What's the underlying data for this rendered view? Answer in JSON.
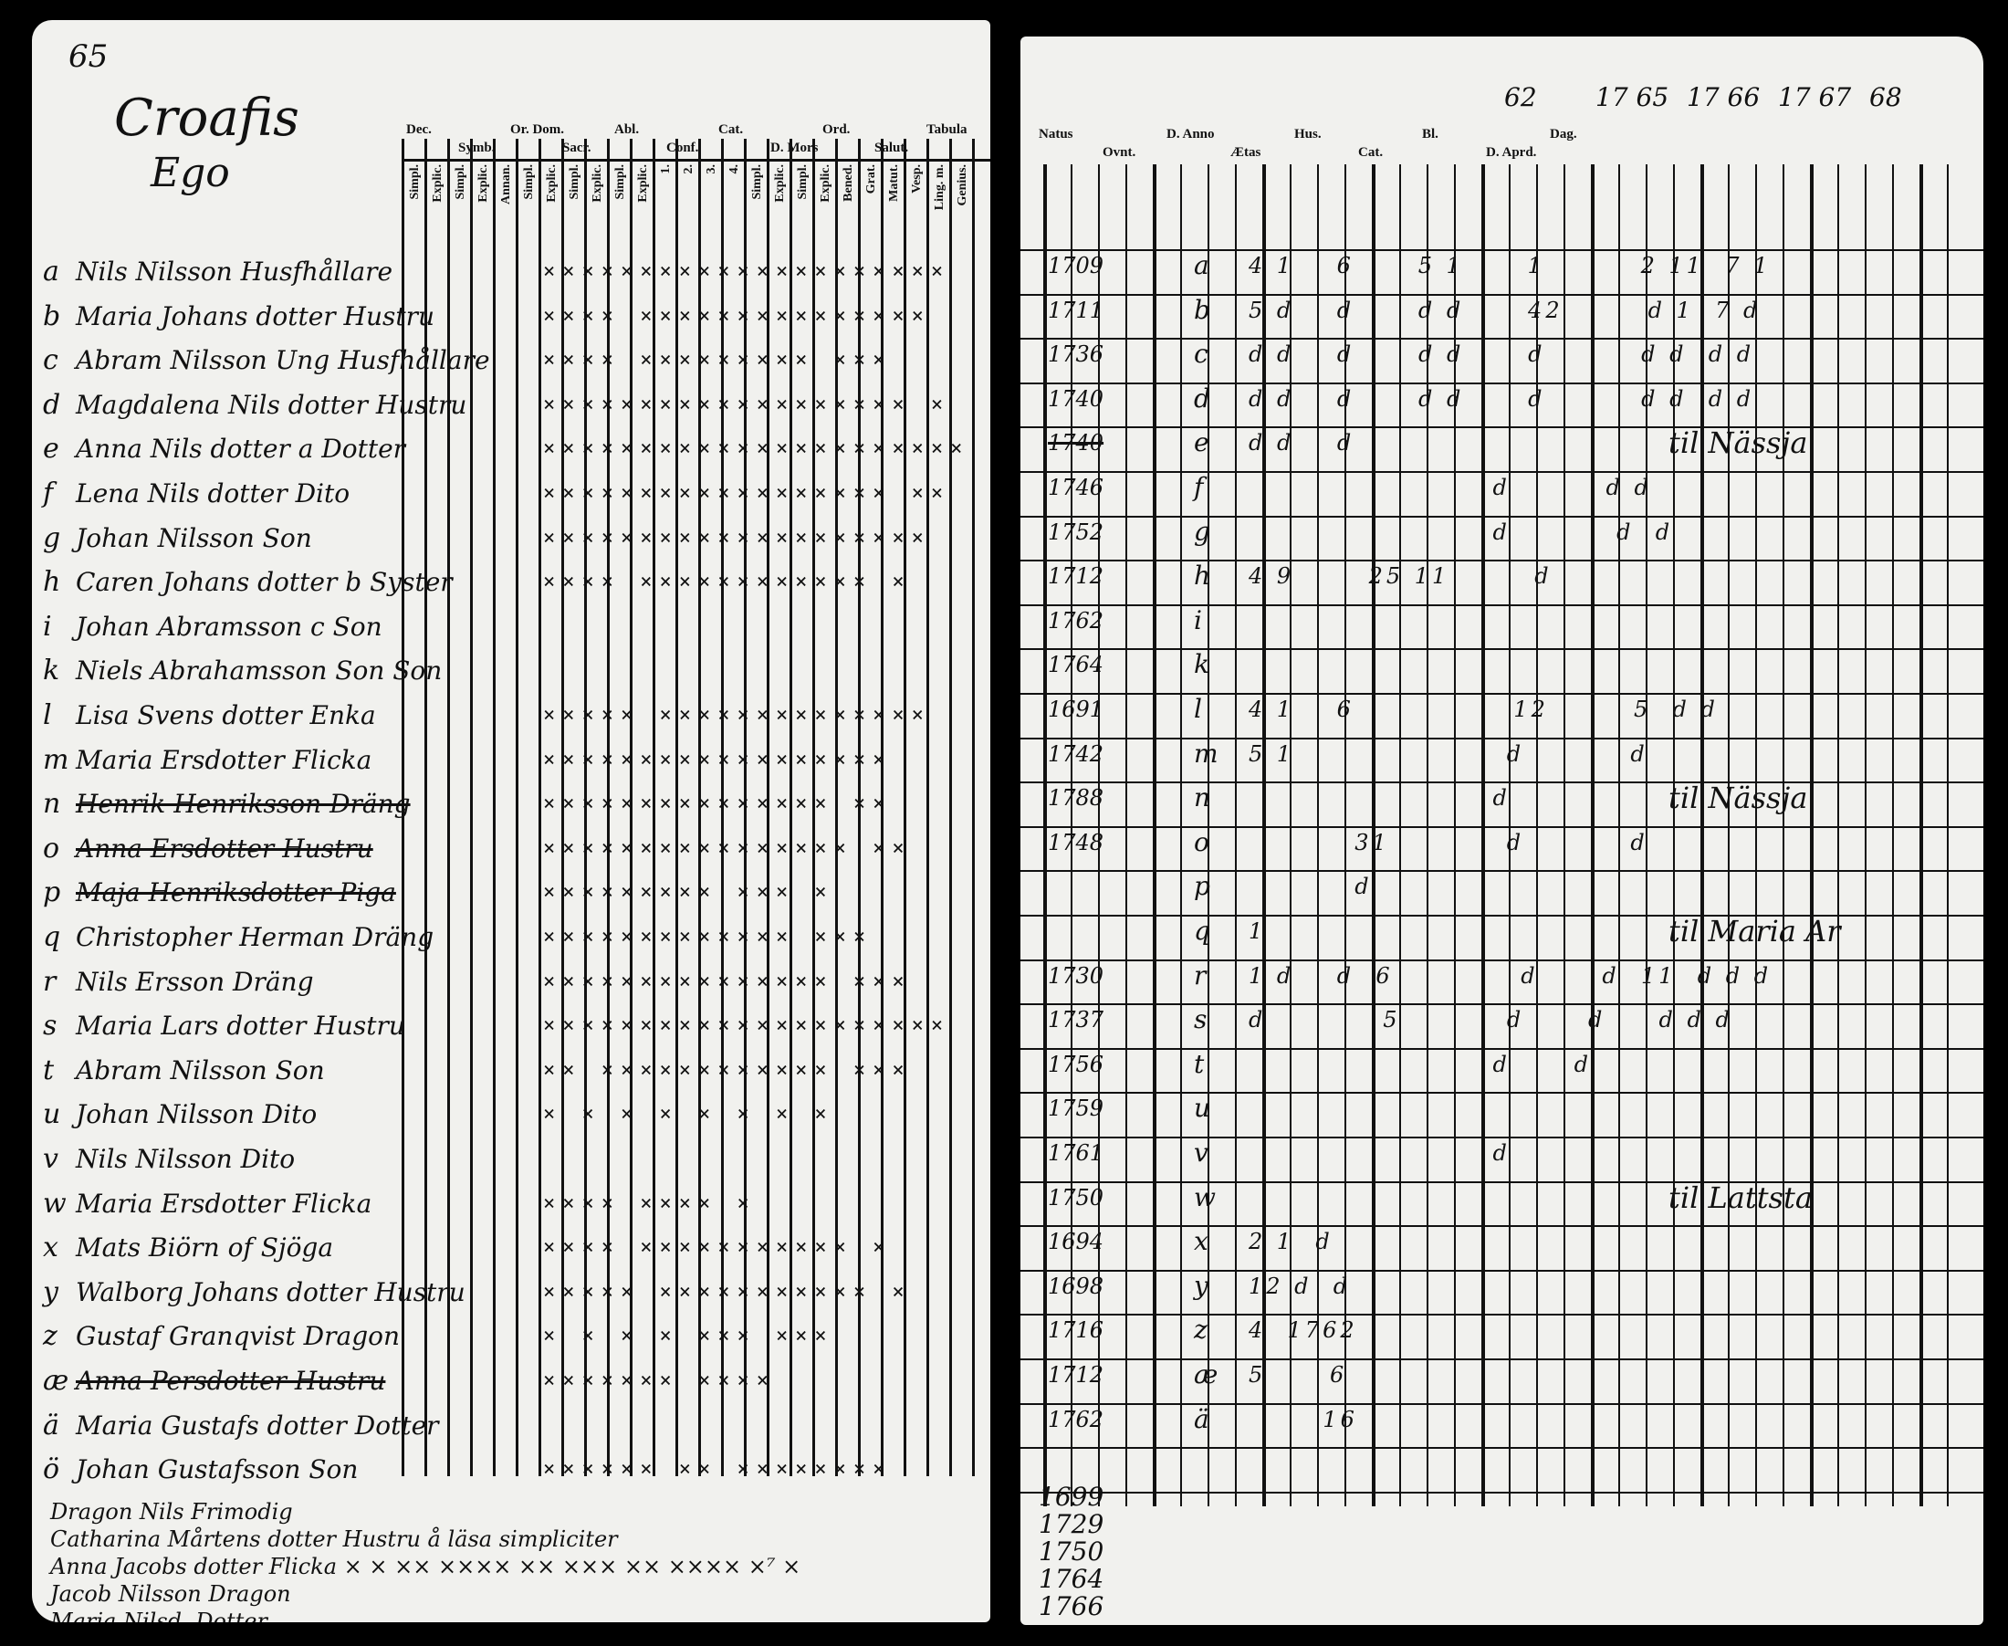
{
  "left_page": {
    "page_number": "65",
    "title": "Croafis",
    "subtitle": "Ego",
    "column_groups": [
      "Dec.",
      "Symb.",
      "Or. Dom.",
      "Sacr.",
      "Abl.",
      "Conf.",
      "Cat.",
      "D. Mors",
      "Ord.",
      "Salut.",
      "Tabula"
    ],
    "sub_columns": [
      "Simpl.",
      "Explic.",
      "Simpl.",
      "Explic.",
      "Annan.",
      "Simpl.",
      "Explic.",
      "Simpl.",
      "Explic.",
      "Simpl.",
      "Explic.",
      "1.",
      "2.",
      "3.",
      "4.",
      "Simpl.",
      "Explic.",
      "Simpl.",
      "Explic.",
      "Bened.",
      "Grat.",
      "Matut.",
      "Vesp.",
      "Ling. m.",
      "Genius."
    ],
    "rows": [
      {
        "letter": "a",
        "name": "Nils Nilsson Husfhållare",
        "marks": "×××××××××××××××××××××",
        "struck": false
      },
      {
        "letter": "b",
        "name": "Maria Johans dotter Hustru",
        "marks": "××××  ×××××××××××××××",
        "struck": false
      },
      {
        "letter": "c",
        "name": "Abram Nilsson Ung Husfhållare",
        "marks": "××××  ××××××××× ×××",
        "struck": false
      },
      {
        "letter": "d",
        "name": "Magdalena Nils dotter Hustru",
        "marks": "××××××××××××××××××× ×",
        "struck": false
      },
      {
        "letter": "e",
        "name": "Anna Nils dotter a Dotter",
        "marks": "××××××××××××××××××××××",
        "struck": false
      },
      {
        "letter": "f",
        "name": "Lena Nils dotter Dito",
        "marks": "×××××××××××××××××× ××",
        "struck": false
      },
      {
        "letter": "g",
        "name": "Johan Nilsson Son",
        "marks": "××××××××××××××××××××",
        "struck": false
      },
      {
        "letter": "h",
        "name": "Caren Johans dotter b Syster",
        "marks": "××××  ××××××××××××    ×",
        "struck": false
      },
      {
        "letter": "i",
        "name": "Johan Abramsson c Son",
        "marks": "",
        "struck": false
      },
      {
        "letter": "k",
        "name": "Niels Abrahamsson Son Son",
        "marks": "",
        "struck": false
      },
      {
        "letter": "l",
        "name": "Lisa Svens dotter Enka",
        "marks": "×××××  ××××××××××××××",
        "struck": false
      },
      {
        "letter": "m",
        "name": "Maria Ersdotter Flicka",
        "marks": "××××××××××××××××××",
        "struck": false
      },
      {
        "letter": "n",
        "name": "Henrik Henriksson Dräng",
        "marks": "×××××××××××××××  ××",
        "struck": true
      },
      {
        "letter": "o",
        "name": "Anna Ersdotter Hustru",
        "marks": "×××××××××××××××× ××",
        "struck": true
      },
      {
        "letter": "p",
        "name": "Maja Henriksdotter Piga",
        "marks": "×××××××××  ×××   ×",
        "struck": true
      },
      {
        "letter": "q",
        "name": "Christopher Herman Dräng",
        "marks": "×××××××××××××  ×××",
        "struck": false
      },
      {
        "letter": "r",
        "name": "Nils Ersson Dräng",
        "marks": "×××××××××××××××  ×××",
        "struck": false
      },
      {
        "letter": "s",
        "name": "Maria Lars dotter Hustru",
        "marks": "×××××××××××××××××××××",
        "struck": false
      },
      {
        "letter": "t",
        "name": "Abram Nilsson Son",
        "marks": "××  ××××××××××××   ×××",
        "struck": false
      },
      {
        "letter": "u",
        "name": "Johan Nilsson Dito",
        "marks": "× ×  × × × ×   ×   ×",
        "struck": false
      },
      {
        "letter": "v",
        "name": "Nils Nilsson Dito",
        "marks": "",
        "struck": false
      },
      {
        "letter": "w",
        "name": "Maria Ersdotter Flicka",
        "marks": "××××  ××××  ×",
        "struck": false
      },
      {
        "letter": "x",
        "name": "Mats Biörn of Sjöga",
        "marks": "×××× ×××××××××××    ×",
        "struck": false
      },
      {
        "letter": "y",
        "name": "Walborg Johans dotter Hustru",
        "marks": "××××× ×××××××××××   ×",
        "struck": false
      },
      {
        "letter": "z",
        "name": "Gustaf Granqvist Dragon",
        "marks": "× ×  × ×  ××× ×××",
        "struck": false
      },
      {
        "letter": "æ",
        "name": "Anna Persdotter Hustru",
        "marks": "×××××××  ××××",
        "struck": true
      },
      {
        "letter": "ä",
        "name": "Maria Gustafs dotter Dotter",
        "marks": "",
        "struck": false
      },
      {
        "letter": "ö",
        "name": "Johan Gustafsson Son",
        "marks": "×××××× ×× ××××××××",
        "struck": false
      }
    ],
    "footer_lines": [
      "Dragon Nils Frimodig",
      "Catharina Mårtens dotter Hustru   å läsa simpliciter",
      "Anna Jacobs dotter Flicka   × × ××   ×××× ×× ××× ×× ××××     ×⁷ ×",
      "Jacob Nilsson Dragon",
      "Maria Nilsd. Dotter"
    ]
  },
  "right_page": {
    "header_labels": [
      "Natus",
      "Ovnt.",
      "D. Anno",
      "Ætas",
      "Hus.",
      "Cat.",
      "Bl.",
      "D. Aprd.",
      "Dag."
    ],
    "year_headers": [
      "62",
      "17 65",
      "17 66",
      "17 67",
      "68"
    ],
    "rows": [
      {
        "year": "1709",
        "letter": "a",
        "marks": "4 1    6      5 1      1         2 11  7 1"
      },
      {
        "year": "1711",
        "letter": "b",
        "marks": "5 d    d      d d      42        d 1  7 d"
      },
      {
        "year": "1736",
        "letter": "c",
        "marks": "d d    d      d d      d         d d  d d"
      },
      {
        "year": "1740",
        "letter": "d",
        "marks": "d d    d      d d      d         d d  d d"
      },
      {
        "year": "1740",
        "letter": "e",
        "marks": "d d    d"
      },
      {
        "year": "1746",
        "letter": "f",
        "marks": "                       d         d d"
      },
      {
        "year": "1752",
        "letter": "g",
        "marks": "                       d          d  d"
      },
      {
        "year": "1712",
        "letter": "h",
        "marks": "4 9       25 11        d"
      },
      {
        "year": "1762",
        "letter": "i",
        "marks": ""
      },
      {
        "year": "1764",
        "letter": "k",
        "marks": ""
      },
      {
        "year": "1691",
        "letter": "l",
        "marks": "4 1    6               12        5  d d"
      },
      {
        "year": "1742",
        "letter": "m",
        "marks": "5 1                    d          d"
      },
      {
        "year": "1788",
        "letter": "n",
        "marks": "                       d"
      },
      {
        "year": "1748",
        "letter": "o",
        "marks": "          31           d          d"
      },
      {
        "year": "",
        "letter": "p",
        "marks": "          d"
      },
      {
        "year": "",
        "letter": "q",
        "marks": "1"
      },
      {
        "year": "1730",
        "letter": "r",
        "marks": "1 d    d  6            d      d  11  d d d"
      },
      {
        "year": "1737",
        "letter": "s",
        "marks": "d           5          d      d     d d d"
      },
      {
        "year": "1756",
        "letter": "t",
        "marks": "                       d      d"
      },
      {
        "year": "1759",
        "letter": "u",
        "marks": ""
      },
      {
        "year": "1761",
        "letter": "v",
        "marks": "                       d"
      },
      {
        "year": "1750",
        "letter": "w",
        "marks": ""
      },
      {
        "year": "1694",
        "letter": "x",
        "marks": "2 1  d"
      },
      {
        "year": "1698",
        "letter": "y",
        "marks": "12 d  d"
      },
      {
        "year": "1716",
        "letter": "z",
        "marks": "4  1762"
      },
      {
        "year": "1712",
        "letter": "æ",
        "marks": "5      6"
      },
      {
        "year": "1762",
        "letter": "ä",
        "marks": "       16"
      }
    ],
    "notes": [
      {
        "row": "e",
        "text": "til Nässja"
      },
      {
        "row": "n",
        "text": "til Nässja"
      },
      {
        "row": "q",
        "text": "til Maria Ar"
      },
      {
        "row": "w",
        "text": "til Lattsta"
      }
    ],
    "footer_years": [
      "1699",
      "1729",
      "1750",
      "1764",
      "1766"
    ]
  }
}
